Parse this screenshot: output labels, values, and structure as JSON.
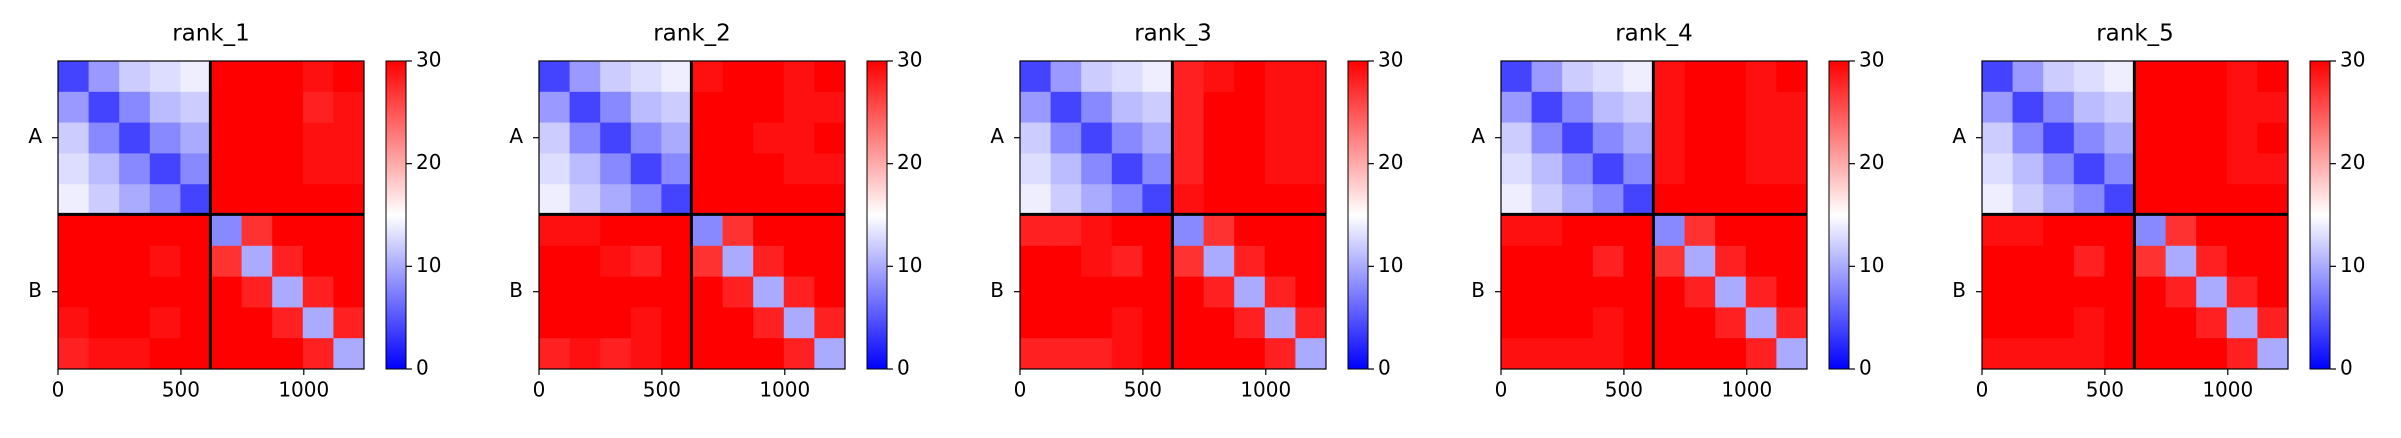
{
  "chart_data": [
    {
      "type": "heatmap",
      "title": "rank_1",
      "xlim": [
        0,
        1245
      ],
      "xticks": [
        0,
        500,
        1000
      ],
      "chains": [
        "A",
        "B"
      ],
      "chain_ends": [
        620,
        1245
      ],
      "clim": [
        0,
        30
      ],
      "cticks": [
        0,
        10,
        20,
        30
      ],
      "matrix": [
        [
          4,
          9,
          12,
          13,
          14,
          30,
          30,
          30,
          29,
          30
        ],
        [
          9,
          4,
          8,
          11,
          12,
          30,
          30,
          30,
          28,
          29
        ],
        [
          12,
          8,
          4,
          8,
          10,
          30,
          30,
          30,
          29,
          29
        ],
        [
          13,
          11,
          8,
          4,
          8,
          30,
          30,
          30,
          29,
          29
        ],
        [
          14,
          12,
          10,
          8,
          4,
          30,
          30,
          30,
          30,
          30
        ],
        [
          30,
          30,
          30,
          30,
          30,
          8,
          27,
          30,
          30,
          30
        ],
        [
          30,
          30,
          30,
          29,
          30,
          27,
          10,
          28,
          30,
          30
        ],
        [
          30,
          30,
          30,
          30,
          30,
          30,
          28,
          10,
          28,
          30
        ],
        [
          29,
          30,
          30,
          29,
          30,
          30,
          30,
          28,
          10,
          28
        ],
        [
          28,
          29,
          29,
          30,
          30,
          30,
          30,
          30,
          28,
          10
        ]
      ]
    },
    {
      "type": "heatmap",
      "title": "rank_2",
      "xlim": [
        0,
        1245
      ],
      "xticks": [
        0,
        500,
        1000
      ],
      "chains": [
        "A",
        "B"
      ],
      "chain_ends": [
        620,
        1245
      ],
      "clim": [
        0,
        30
      ],
      "cticks": [
        0,
        10,
        20,
        30
      ],
      "matrix": [
        [
          4,
          9,
          12,
          13,
          14,
          29,
          30,
          30,
          29,
          30
        ],
        [
          9,
          4,
          8,
          11,
          12,
          30,
          30,
          30,
          29,
          29
        ],
        [
          12,
          8,
          4,
          8,
          10,
          30,
          30,
          29,
          29,
          30
        ],
        [
          13,
          11,
          8,
          4,
          8,
          30,
          30,
          30,
          29,
          29
        ],
        [
          14,
          12,
          10,
          8,
          4,
          30,
          30,
          30,
          30,
          30
        ],
        [
          29,
          29,
          30,
          30,
          30,
          8,
          27,
          30,
          30,
          30
        ],
        [
          30,
          30,
          29,
          28,
          30,
          27,
          10,
          28,
          30,
          30
        ],
        [
          30,
          30,
          30,
          30,
          30,
          30,
          28,
          10,
          28,
          30
        ],
        [
          30,
          30,
          30,
          29,
          30,
          30,
          30,
          28,
          10,
          28
        ],
        [
          28,
          29,
          28,
          29,
          30,
          30,
          30,
          30,
          28,
          10
        ]
      ]
    },
    {
      "type": "heatmap",
      "title": "rank_3",
      "xlim": [
        0,
        1245
      ],
      "xticks": [
        0,
        500,
        1000
      ],
      "chains": [
        "A",
        "B"
      ],
      "chain_ends": [
        620,
        1245
      ],
      "clim": [
        0,
        30
      ],
      "cticks": [
        0,
        10,
        20,
        30
      ],
      "matrix": [
        [
          4,
          9,
          12,
          13,
          14,
          28,
          29,
          30,
          29,
          29
        ],
        [
          9,
          4,
          8,
          11,
          12,
          28,
          30,
          30,
          29,
          29
        ],
        [
          12,
          8,
          4,
          8,
          10,
          28,
          30,
          30,
          29,
          29
        ],
        [
          13,
          11,
          8,
          4,
          8,
          28,
          30,
          30,
          29,
          29
        ],
        [
          14,
          12,
          10,
          8,
          4,
          29,
          30,
          30,
          30,
          30
        ],
        [
          28,
          28,
          29,
          30,
          30,
          8,
          27,
          30,
          30,
          30
        ],
        [
          30,
          30,
          29,
          28,
          30,
          27,
          10,
          28,
          30,
          30
        ],
        [
          30,
          30,
          30,
          30,
          30,
          30,
          28,
          10,
          28,
          30
        ],
        [
          30,
          30,
          30,
          29,
          30,
          30,
          30,
          28,
          10,
          28
        ],
        [
          28,
          28,
          28,
          29,
          30,
          30,
          30,
          30,
          28,
          10
        ]
      ]
    },
    {
      "type": "heatmap",
      "title": "rank_4",
      "xlim": [
        0,
        1245
      ],
      "xticks": [
        0,
        500,
        1000
      ],
      "chains": [
        "A",
        "B"
      ],
      "chain_ends": [
        620,
        1245
      ],
      "clim": [
        0,
        30
      ],
      "cticks": [
        0,
        10,
        20,
        30
      ],
      "matrix": [
        [
          4,
          9,
          12,
          13,
          14,
          29,
          30,
          30,
          29,
          30
        ],
        [
          9,
          4,
          8,
          11,
          12,
          29,
          30,
          30,
          29,
          29
        ],
        [
          12,
          8,
          4,
          8,
          10,
          29,
          30,
          30,
          29,
          29
        ],
        [
          13,
          11,
          8,
          4,
          8,
          29,
          30,
          30,
          29,
          29
        ],
        [
          14,
          12,
          10,
          8,
          4,
          30,
          30,
          30,
          30,
          30
        ],
        [
          29,
          29,
          30,
          30,
          30,
          8,
          27,
          30,
          30,
          30
        ],
        [
          30,
          30,
          30,
          28,
          30,
          27,
          10,
          28,
          30,
          30
        ],
        [
          30,
          30,
          30,
          30,
          30,
          30,
          28,
          10,
          28,
          30
        ],
        [
          30,
          30,
          30,
          29,
          30,
          30,
          30,
          28,
          10,
          28
        ],
        [
          29,
          29,
          29,
          29,
          30,
          30,
          30,
          30,
          28,
          10
        ]
      ]
    },
    {
      "type": "heatmap",
      "title": "rank_5",
      "xlim": [
        0,
        1245
      ],
      "xticks": [
        0,
        500,
        1000
      ],
      "chains": [
        "A",
        "B"
      ],
      "chain_ends": [
        620,
        1245
      ],
      "clim": [
        0,
        30
      ],
      "cticks": [
        0,
        10,
        20,
        30
      ],
      "matrix": [
        [
          4,
          9,
          12,
          13,
          14,
          30,
          30,
          30,
          29,
          30
        ],
        [
          9,
          4,
          8,
          11,
          12,
          30,
          30,
          30,
          29,
          29
        ],
        [
          12,
          8,
          4,
          8,
          10,
          30,
          30,
          30,
          29,
          30
        ],
        [
          13,
          11,
          8,
          4,
          8,
          30,
          30,
          30,
          29,
          29
        ],
        [
          14,
          12,
          10,
          8,
          4,
          30,
          30,
          30,
          30,
          30
        ],
        [
          29,
          29,
          30,
          30,
          30,
          8,
          27,
          30,
          30,
          30
        ],
        [
          30,
          30,
          30,
          28,
          30,
          27,
          10,
          28,
          30,
          30
        ],
        [
          30,
          30,
          30,
          30,
          30,
          30,
          28,
          10,
          28,
          30
        ],
        [
          30,
          30,
          30,
          29,
          30,
          30,
          30,
          28,
          10,
          28
        ],
        [
          29,
          29,
          29,
          29,
          30,
          30,
          30,
          30,
          28,
          10
        ]
      ]
    }
  ]
}
